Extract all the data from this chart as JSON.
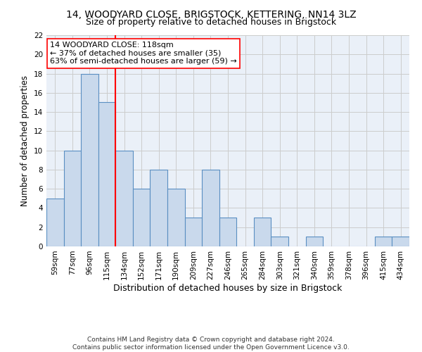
{
  "title1": "14, WOODYARD CLOSE, BRIGSTOCK, KETTERING, NN14 3LZ",
  "title2": "Size of property relative to detached houses in Brigstock",
  "xlabel": "Distribution of detached houses by size in Brigstock",
  "ylabel": "Number of detached properties",
  "footer": "Contains HM Land Registry data © Crown copyright and database right 2024.\nContains public sector information licensed under the Open Government Licence v3.0.",
  "categories": [
    "59sqm",
    "77sqm",
    "96sqm",
    "115sqm",
    "134sqm",
    "152sqm",
    "171sqm",
    "190sqm",
    "209sqm",
    "227sqm",
    "246sqm",
    "265sqm",
    "284sqm",
    "303sqm",
    "321sqm",
    "340sqm",
    "359sqm",
    "378sqm",
    "396sqm",
    "415sqm",
    "434sqm"
  ],
  "values": [
    5,
    10,
    18,
    15,
    10,
    6,
    8,
    6,
    3,
    8,
    3,
    0,
    3,
    1,
    0,
    1,
    0,
    0,
    0,
    1,
    1
  ],
  "bar_color": "#c9d9ec",
  "bar_edge_color": "#5a8fc2",
  "bar_linewidth": 0.8,
  "vline_x": 3.5,
  "vline_color": "red",
  "vline_linewidth": 1.5,
  "annotation_text": "14 WOODYARD CLOSE: 118sqm\n← 37% of detached houses are smaller (35)\n63% of semi-detached houses are larger (59) →",
  "annotation_box_color": "white",
  "annotation_box_edge": "red",
  "ylim": [
    0,
    22
  ],
  "yticks": [
    0,
    2,
    4,
    6,
    8,
    10,
    12,
    14,
    16,
    18,
    20,
    22
  ],
  "grid_color": "#cccccc",
  "bg_color": "#eaf0f8",
  "title1_fontsize": 10,
  "title2_fontsize": 9,
  "xlabel_fontsize": 9,
  "ylabel_fontsize": 8.5,
  "tick_fontsize": 7.5,
  "annotation_fontsize": 8,
  "footer_fontsize": 6.5
}
